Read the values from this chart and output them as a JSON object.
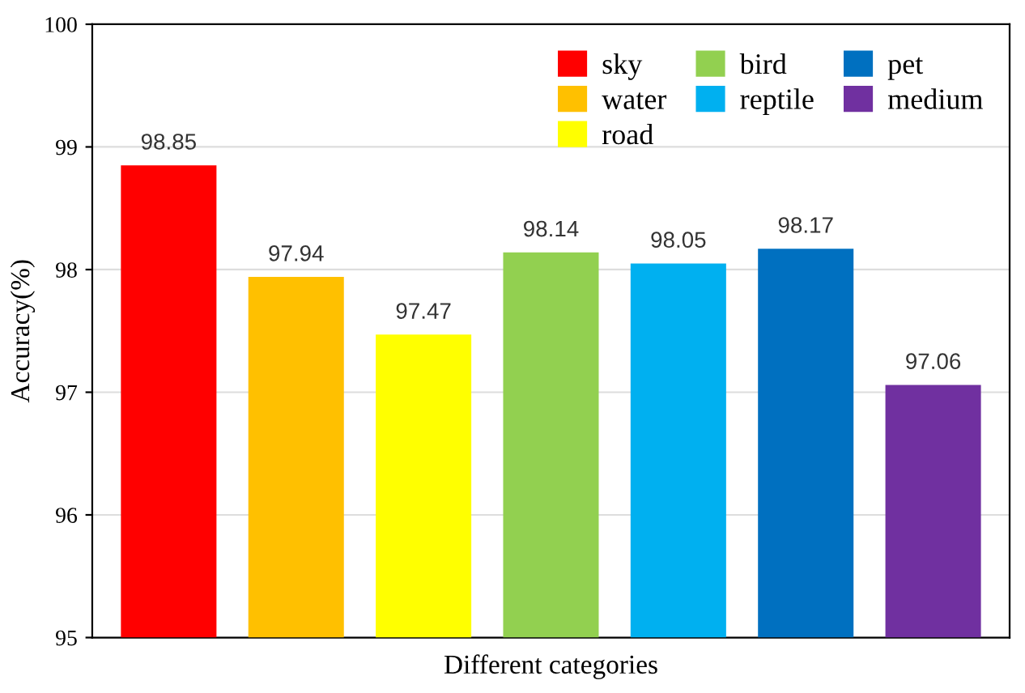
{
  "chart_data": {
    "type": "bar",
    "xlabel": "Different categories",
    "ylabel": "Accuracy(%)",
    "categories": [
      null,
      null,
      null,
      null,
      null,
      null,
      null
    ],
    "series": [
      {
        "name": "sky",
        "color": "#ff0000",
        "values": [
          98.85,
          null,
          null,
          null,
          null,
          null,
          null
        ]
      },
      {
        "name": "water",
        "color": "#ffc000",
        "values": [
          null,
          97.94,
          null,
          null,
          null,
          null,
          null
        ]
      },
      {
        "name": "road",
        "color": "#ffff00",
        "values": [
          null,
          null,
          97.47,
          null,
          null,
          null,
          null
        ]
      },
      {
        "name": "bird",
        "color": "#92d050",
        "values": [
          null,
          null,
          null,
          98.14,
          null,
          null,
          null
        ]
      },
      {
        "name": "reptile",
        "color": "#00b0f0",
        "values": [
          null,
          null,
          null,
          null,
          98.05,
          null,
          null
        ]
      },
      {
        "name": "pet",
        "color": "#0070c0",
        "values": [
          null,
          null,
          null,
          null,
          null,
          98.17,
          null
        ]
      },
      {
        "name": "medium",
        "color": "#7030a0",
        "values": [
          null,
          null,
          null,
          null,
          null,
          null,
          97.06
        ]
      }
    ],
    "ylim": [
      95,
      100
    ],
    "yticks": [
      95,
      96,
      97,
      98,
      99,
      100
    ],
    "grid": "y",
    "legend": "top right",
    "data_labels": true
  }
}
